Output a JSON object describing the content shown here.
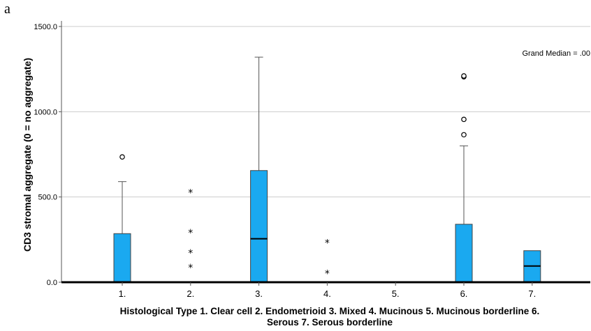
{
  "panel_label": "a",
  "chart_data": {
    "type": "box",
    "title": "",
    "ylabel": "CD3 stromal aggregate (0 = no aggregate)",
    "xlabel_lines": [
      "Histological Type 1. Clear cell 2. Endometrioid 3. Mixed 4. Mucinous 5. Mucinous borderline 6.",
      "Serous 7. Serous borderline"
    ],
    "ylim": [
      0,
      1500
    ],
    "yticks": [
      0,
      500,
      1000,
      1500
    ],
    "ytick_labels": [
      "0.0",
      "500.0",
      "1000.0",
      "1500.0"
    ],
    "grid": true,
    "annotation": "Grand Median = .00",
    "box_color": "#1aa9f0",
    "categories": [
      "1.",
      "2.",
      "3.",
      "4.",
      "5.",
      "6.",
      "7."
    ],
    "boxes": [
      {
        "category": "1.",
        "q1": 0,
        "median": 0,
        "q3": 285,
        "whisker_low": 0,
        "whisker_high": 590,
        "outliers": [
          735
        ],
        "extremes": []
      },
      {
        "category": "2.",
        "q1": 0,
        "median": 0,
        "q3": 0,
        "whisker_low": 0,
        "whisker_high": 0,
        "outliers": [],
        "extremes": [
          530,
          295,
          175,
          90
        ]
      },
      {
        "category": "3.",
        "q1": 0,
        "median": 255,
        "q3": 655,
        "whisker_low": 0,
        "whisker_high": 1320,
        "outliers": [],
        "extremes": []
      },
      {
        "category": "4.",
        "q1": 0,
        "median": 0,
        "q3": 0,
        "whisker_low": 0,
        "whisker_high": 0,
        "outliers": [],
        "extremes": [
          235,
          55
        ]
      },
      {
        "category": "5.",
        "q1": 0,
        "median": 0,
        "q3": 0,
        "whisker_low": 0,
        "whisker_high": 0,
        "outliers": [],
        "extremes": []
      },
      {
        "category": "6.",
        "q1": 0,
        "median": 0,
        "q3": 340,
        "whisker_low": 0,
        "whisker_high": 800,
        "outliers": [
          865,
          955,
          1205,
          1210
        ],
        "extremes": []
      },
      {
        "category": "7.",
        "q1": 0,
        "median": 95,
        "q3": 185,
        "whisker_low": 0,
        "whisker_high": 185,
        "outliers": [],
        "extremes": []
      }
    ]
  }
}
